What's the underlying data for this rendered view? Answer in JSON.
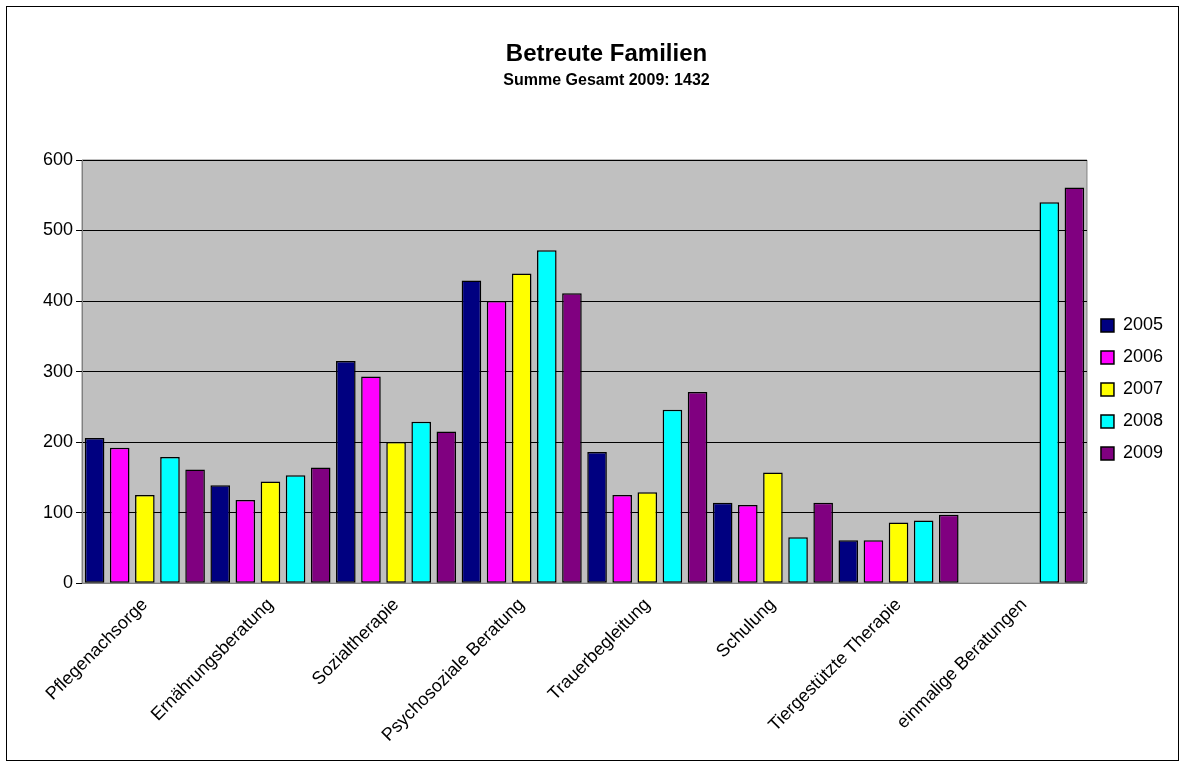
{
  "chart_data": {
    "type": "bar",
    "title": "Betreute Familien",
    "subtitle": "Summe Gesamt 2009: 1432",
    "categories": [
      "Pflegenachsorge",
      "Ernährungsberatung",
      "Sozialtherapie",
      "Psychosoziale Beratung",
      "Trauerbegleitung",
      "Schulung",
      "Tiergestützte Therapie",
      "einmalige Beratungen"
    ],
    "series": [
      {
        "name": "2005",
        "color": "#000080",
        "values": [
          206,
          139,
          315,
          429,
          186,
          114,
          61,
          null
        ]
      },
      {
        "name": "2006",
        "color": "#ff00ff",
        "values": [
          192,
          118,
          293,
          400,
          125,
          111,
          61,
          null
        ]
      },
      {
        "name": "2007",
        "color": "#ffff00",
        "values": [
          125,
          144,
          200,
          439,
          129,
          157,
          86,
          null
        ]
      },
      {
        "name": "2008",
        "color": "#00ffff",
        "values": [
          179,
          153,
          229,
          472,
          246,
          65,
          89,
          540
        ]
      },
      {
        "name": "2009",
        "color": "#800080",
        "values": [
          161,
          164,
          215,
          411,
          271,
          114,
          97,
          561
        ]
      }
    ],
    "ylim": [
      0,
      600
    ],
    "yticks": [
      0,
      100,
      200,
      300,
      400,
      500,
      600
    ],
    "grid": "y",
    "legend": "right"
  }
}
